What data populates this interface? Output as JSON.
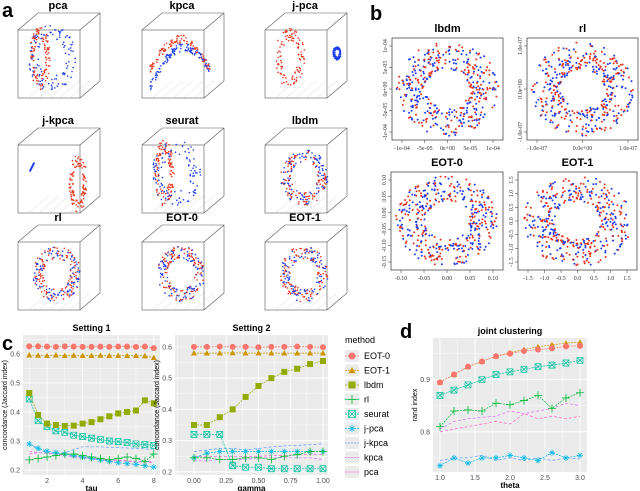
{
  "panel_labels": {
    "a": "a",
    "b": "b",
    "c": "c",
    "d": "d"
  },
  "colors": {
    "red_cells": "#E8341C",
    "blue_cells": "#1A3DF0"
  },
  "panel_a": {
    "titles": [
      "pca",
      "kpca",
      "j-pca",
      "j-kpca",
      "seurat",
      "lbdm",
      "rl",
      "EOT-0",
      "EOT-1"
    ]
  },
  "panel_b": {
    "plots": [
      {
        "title": "lbdm",
        "xticks": [
          "-1e-04",
          "-5e-05",
          "0e+00",
          "5e-05",
          "1e-04"
        ],
        "yticks": [
          "1e-04",
          "5e-05",
          "0e+00",
          "-5e-05",
          "-1e-04"
        ]
      },
      {
        "title": "rl",
        "xticks": [
          "-1.0e-07",
          "0.0e+00",
          "1.0e-07"
        ],
        "yticks": [
          "1.0e-07",
          "0.0e+00",
          "-1.0e-07"
        ]
      },
      {
        "title": "EOT-0",
        "xticks": [
          "-0.10",
          "-0.05",
          "0.00",
          "0.05",
          "0.10"
        ],
        "yticks": [
          "0.10",
          "0.05",
          "0.00",
          "-0.05",
          "-0.10",
          "-0.15"
        ]
      },
      {
        "title": "EOT-1",
        "xticks": [
          "-1.5",
          "-1.0",
          "-0.5",
          "0.0",
          "0.5",
          "1.0",
          "1.5"
        ],
        "yticks": [
          "1.5",
          "1.0",
          "0.5",
          "0.0",
          "-0.5",
          "-1.0",
          "-1.5"
        ]
      }
    ]
  },
  "legend": {
    "title": "method",
    "items": [
      {
        "name": "EOT-0",
        "color": "#F8766D",
        "marker": "circle"
      },
      {
        "name": "EOT-1",
        "color": "#CD9600",
        "marker": "triangle"
      },
      {
        "name": "lbdm",
        "color": "#93AA00",
        "marker": "square"
      },
      {
        "name": "rl",
        "color": "#00BA38",
        "marker": "plus"
      },
      {
        "name": "seurat",
        "color": "#00C19F",
        "marker": "boxcross"
      },
      {
        "name": "j-pca",
        "color": "#00B9E3",
        "marker": "asterisk"
      },
      {
        "name": "j-kpca",
        "color": "#619CFF",
        "marker": "none"
      },
      {
        "name": "kpca",
        "color": "#DB72FB",
        "marker": "none"
      },
      {
        "name": "pca",
        "color": "#FF61C3",
        "marker": "none"
      }
    ]
  },
  "chart_data": [
    {
      "type": "line",
      "title": "Setting 1",
      "xlabel": "tau",
      "ylabel": "concordance (Jaccard index)",
      "xlim": [
        0.65,
        8.35
      ],
      "ylim": [
        0.183,
        0.665
      ],
      "xticks": [
        2,
        4,
        6,
        8
      ],
      "yticks": [
        0.2,
        0.3,
        0.4,
        0.5,
        0.6
      ],
      "grid": true,
      "x": [
        1,
        1.5,
        2,
        2.5,
        3,
        3.5,
        4,
        4.5,
        5,
        5.5,
        6,
        6.5,
        7,
        7.5,
        8
      ],
      "series": [
        {
          "name": "EOT-0",
          "values": [
            0.626,
            0.626,
            0.625,
            0.624,
            0.626,
            0.625,
            0.624,
            0.624,
            0.625,
            0.624,
            0.625,
            0.625,
            0.624,
            0.625,
            0.62
          ]
        },
        {
          "name": "EOT-1",
          "values": [
            0.596,
            0.595,
            0.594,
            0.596,
            0.594,
            0.595,
            0.594,
            0.594,
            0.595,
            0.594,
            0.594,
            0.594,
            0.594,
            0.593,
            0.587
          ]
        },
        {
          "name": "lbdm",
          "values": [
            0.465,
            0.39,
            0.36,
            0.355,
            0.352,
            0.353,
            0.36,
            0.365,
            0.375,
            0.385,
            0.395,
            0.4,
            0.405,
            0.44,
            0.43
          ]
        },
        {
          "name": "rl",
          "values": [
            0.235,
            0.24,
            0.245,
            0.25,
            0.255,
            0.255,
            0.25,
            0.245,
            0.24,
            0.235,
            0.24,
            0.245,
            0.24,
            0.23,
            0.255
          ]
        },
        {
          "name": "seurat",
          "values": [
            0.445,
            0.37,
            0.35,
            0.335,
            0.33,
            0.32,
            0.315,
            0.31,
            0.305,
            0.3,
            0.298,
            0.295,
            0.29,
            0.288,
            0.285
          ]
        },
        {
          "name": "j-pca",
          "values": [
            0.29,
            0.275,
            0.265,
            0.26,
            0.255,
            0.25,
            0.245,
            0.24,
            0.235,
            0.23,
            0.225,
            0.222,
            0.22,
            0.215,
            0.21
          ]
        },
        {
          "name": "j-kpca",
          "values": [
            0.29,
            0.27,
            0.26,
            0.255,
            0.26,
            0.27,
            0.28,
            0.28,
            0.28,
            0.278,
            0.277,
            0.276,
            0.275,
            0.273,
            0.27
          ]
        },
        {
          "name": "kpca",
          "values": [
            0.255,
            0.26,
            0.258,
            0.255,
            0.25,
            0.245,
            0.24,
            0.238,
            0.235,
            0.233,
            0.232,
            0.23,
            0.228,
            0.228,
            0.23
          ]
        },
        {
          "name": "pca",
          "values": [
            0.265,
            0.26,
            0.258,
            0.255,
            0.25,
            0.248,
            0.245,
            0.24,
            0.238,
            0.236,
            0.234,
            0.232,
            0.23,
            0.228,
            0.226
          ]
        }
      ]
    },
    {
      "type": "line",
      "title": "Setting 2",
      "xlabel": "gamma",
      "ylabel": "concordance (Jaccard index)",
      "xlim": [
        -0.147,
        1.039
      ],
      "ylim": [
        0.19,
        0.638
      ],
      "xticks": [
        0.0,
        0.25,
        0.5,
        0.75,
        1.0
      ],
      "xticklabels": [
        "0.00",
        "0.25",
        "0.50",
        "0.75",
        "1.00"
      ],
      "yticks": [
        0.2,
        0.3,
        0.4,
        0.5,
        0.6
      ],
      "grid": true,
      "x": [
        0,
        0.1,
        0.2,
        0.3,
        0.4,
        0.5,
        0.6,
        0.7,
        0.8,
        0.9,
        1.0
      ],
      "series": [
        {
          "name": "EOT-0",
          "values": [
            0.6,
            0.6,
            0.601,
            0.6,
            0.6,
            0.599,
            0.6,
            0.6,
            0.601,
            0.6,
            0.599
          ]
        },
        {
          "name": "EOT-1",
          "values": [
            0.58,
            0.58,
            0.58,
            0.581,
            0.58,
            0.58,
            0.58,
            0.58,
            0.58,
            0.58,
            0.58
          ]
        },
        {
          "name": "lbdm",
          "values": [
            0.35,
            0.35,
            0.375,
            0.4,
            0.44,
            0.475,
            0.5,
            0.52,
            0.53,
            0.545,
            0.555
          ]
        },
        {
          "name": "rl",
          "values": [
            0.245,
            0.245,
            0.24,
            0.24,
            0.245,
            0.245,
            0.24,
            0.25,
            0.255,
            0.265,
            0.265
          ]
        },
        {
          "name": "seurat",
          "values": [
            0.32,
            0.32,
            0.32,
            0.22,
            0.215,
            0.215,
            0.21,
            0.21,
            0.21,
            0.21,
            0.21
          ]
        },
        {
          "name": "j-pca",
          "values": [
            0.245,
            0.26,
            0.265,
            0.265,
            0.265,
            0.265,
            0.265,
            0.265,
            0.265,
            0.265,
            0.265
          ]
        },
        {
          "name": "j-kpca",
          "values": [
            0.265,
            0.27,
            0.275,
            0.275,
            0.27,
            0.275,
            0.28,
            0.283,
            0.285,
            0.287,
            0.29
          ]
        },
        {
          "name": "kpca",
          "values": [
            0.235,
            0.235,
            0.24,
            0.24,
            0.24,
            0.245,
            0.245,
            0.245,
            0.245,
            0.245,
            0.24
          ]
        },
        {
          "name": "pca",
          "values": [
            0.25,
            0.25,
            0.25,
            0.25,
            0.25,
            0.25,
            0.252,
            0.252,
            0.255,
            0.255,
            0.255
          ]
        }
      ]
    },
    {
      "type": "line",
      "title": "joint clustering",
      "xlabel": "theta",
      "ylabel": "rand index",
      "xlim": [
        0.9,
        3.1
      ],
      "ylim": [
        0.723,
        0.98
      ],
      "xticks": [
        1.0,
        1.5,
        2.0,
        2.5,
        3.0
      ],
      "xticklabels": [
        "1.0",
        "1.5",
        "2.0",
        "2.5",
        "3.0"
      ],
      "yticks": [
        0.8,
        0.9
      ],
      "grid": true,
      "x": [
        1.0,
        1.2,
        1.4,
        1.6,
        1.8,
        2.0,
        2.2,
        2.4,
        2.6,
        2.8,
        3.0
      ],
      "series": [
        {
          "name": "EOT-0",
          "values": [
            0.895,
            0.91,
            0.925,
            0.935,
            0.945,
            0.95,
            0.955,
            0.958,
            0.96,
            0.964,
            0.965
          ]
        },
        {
          "name": "EOT-1",
          "values": [
            0.895,
            0.91,
            0.925,
            0.935,
            0.945,
            0.952,
            0.958,
            0.963,
            0.967,
            0.97,
            0.972
          ]
        },
        {
          "name": "seurat",
          "values": [
            0.87,
            0.88,
            0.89,
            0.9,
            0.91,
            0.915,
            0.92,
            0.925,
            0.928,
            0.932,
            0.937
          ]
        },
        {
          "name": "rl",
          "values": [
            0.81,
            0.84,
            0.842,
            0.84,
            0.855,
            0.852,
            0.86,
            0.87,
            0.845,
            0.865,
            0.875
          ]
        },
        {
          "name": "kpca",
          "values": [
            0.805,
            0.82,
            0.825,
            0.828,
            0.83,
            0.84,
            0.835,
            0.84,
            0.845,
            0.855,
            0.85
          ]
        },
        {
          "name": "pca",
          "values": [
            0.8,
            0.805,
            0.81,
            0.815,
            0.82,
            0.815,
            0.835,
            0.825,
            0.83,
            0.825,
            0.83
          ]
        },
        {
          "name": "j-pca",
          "values": [
            0.735,
            0.75,
            0.74,
            0.75,
            0.75,
            0.755,
            0.75,
            0.745,
            0.76,
            0.75,
            0.755
          ]
        },
        {
          "name": "j-kpca",
          "values": [
            0.745,
            0.75,
            0.75,
            0.755,
            0.745,
            0.75,
            0.745,
            0.75,
            0.745,
            0.75,
            0.748
          ]
        }
      ]
    }
  ]
}
